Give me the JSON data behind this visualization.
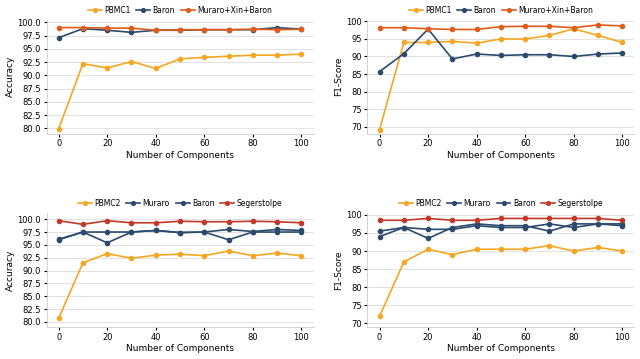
{
  "x": [
    0,
    10,
    20,
    30,
    40,
    50,
    60,
    70,
    80,
    90,
    100
  ],
  "top_left": {
    "ylabel": "Accuracy",
    "xlabel": "Number of Components",
    "ylim": [
      79.0,
      100.5
    ],
    "yticks": [
      80.0,
      82.5,
      85.0,
      87.5,
      90.0,
      92.5,
      95.0,
      97.5,
      100.0
    ],
    "legend_order": [
      "PBMC1",
      "Baron",
      "Muraro+Xin+Baron"
    ],
    "series": {
      "PBMC1": [
        79.9,
        92.2,
        91.4,
        92.6,
        91.3,
        93.1,
        93.4,
        93.6,
        93.8,
        93.8,
        94.0
      ],
      "Baron": [
        97.1,
        98.8,
        98.5,
        98.1,
        98.5,
        98.5,
        98.6,
        98.6,
        98.6,
        99.0,
        98.7
      ],
      "Muraro+Xin+Baron": [
        99.0,
        99.0,
        98.9,
        98.9,
        98.5,
        98.6,
        98.6,
        98.6,
        98.7,
        98.6,
        98.7
      ]
    }
  },
  "top_right": {
    "ylabel": "F1-Score",
    "xlabel": "Number of Components",
    "ylim": [
      68.0,
      100.5
    ],
    "yticks": [
      70,
      75,
      80,
      85,
      90,
      95,
      100
    ],
    "legend_order": [
      "PBMC1",
      "Baron",
      "Muraro+Xin+Baron"
    ],
    "series": {
      "PBMC1": [
        69.2,
        94.0,
        94.0,
        94.3,
        93.8,
        95.0,
        95.0,
        96.0,
        97.9,
        96.0,
        94.0
      ],
      "Baron": [
        85.7,
        90.8,
        97.8,
        89.3,
        90.7,
        90.3,
        90.5,
        90.5,
        90.0,
        90.7,
        91.0
      ],
      "Muraro+Xin+Baron": [
        98.2,
        98.2,
        97.9,
        97.7,
        97.7,
        98.5,
        98.6,
        98.6,
        98.2,
        99.0,
        98.7
      ]
    }
  },
  "bottom_left": {
    "ylabel": "Accuracy",
    "xlabel": "Number of Components",
    "ylim": [
      79.0,
      101.2
    ],
    "yticks": [
      80.0,
      82.5,
      85.0,
      87.5,
      90.0,
      92.5,
      95.0,
      97.5,
      100.0
    ],
    "legend_order": [
      "PBMC2",
      "Muraro",
      "Baron",
      "Segerstolpe"
    ],
    "series": {
      "PBMC2": [
        80.7,
        91.5,
        93.3,
        92.4,
        93.0,
        93.2,
        92.9,
        93.8,
        92.9,
        93.4,
        92.9
      ],
      "Muraro": [
        96.1,
        97.5,
        97.5,
        97.5,
        97.8,
        97.4,
        97.5,
        98.0,
        97.6,
        98.0,
        97.8
      ],
      "Baron": [
        96.0,
        97.5,
        95.4,
        97.5,
        97.8,
        97.4,
        97.5,
        96.0,
        97.5,
        97.5,
        97.5
      ],
      "Segerstolpe": [
        99.7,
        99.0,
        99.7,
        99.3,
        99.3,
        99.6,
        99.5,
        99.5,
        99.6,
        99.5,
        99.3
      ]
    }
  },
  "bottom_right": {
    "ylabel": "F1-Score",
    "xlabel": "Number of Components",
    "ylim": [
      69.0,
      100.5
    ],
    "yticks": [
      70,
      75,
      80,
      85,
      90,
      95,
      100
    ],
    "legend_order": [
      "PBMC2",
      "Muraro",
      "Baron",
      "Segerstolpe"
    ],
    "series": {
      "PBMC2": [
        72.0,
        87.0,
        90.5,
        89.0,
        90.5,
        90.5,
        90.5,
        91.5,
        90.0,
        91.0,
        90.0
      ],
      "Muraro": [
        94.0,
        96.5,
        96.0,
        96.0,
        97.0,
        96.5,
        96.5,
        97.5,
        96.5,
        97.5,
        97.0
      ],
      "Baron": [
        95.5,
        96.5,
        93.5,
        96.5,
        97.5,
        97.0,
        97.0,
        95.5,
        97.5,
        97.5,
        97.5
      ],
      "Segerstolpe": [
        98.5,
        98.5,
        99.0,
        98.5,
        98.5,
        99.0,
        99.0,
        99.0,
        99.0,
        99.0,
        98.5
      ]
    }
  },
  "colors": {
    "PBMC1": "#f5a623",
    "PBMC2": "#f5a623",
    "Baron": "#2c4a6e",
    "Muraro": "#2c4a6e",
    "Muraro+Xin+Baron": "#e05c1a",
    "Segerstolpe": "#c0392b"
  },
  "marker": "o",
  "markersize": 3,
  "linewidth": 1.2,
  "bg_color": "#ffffff",
  "grid_color": "#dddddd"
}
